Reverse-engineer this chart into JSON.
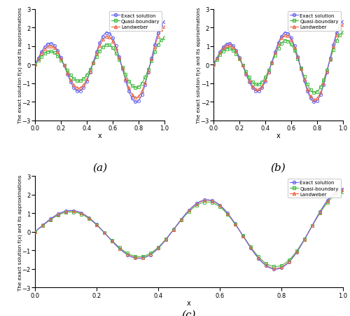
{
  "title_a": "(a)",
  "title_b": "(b)",
  "title_c": "(c)",
  "xlabel": "x",
  "ylabel": "The exact solution f(x) and its approximations",
  "xlim": [
    0,
    1
  ],
  "ylim": [
    -3,
    3
  ],
  "yticks": [
    -3,
    -2,
    -1,
    0,
    1,
    2,
    3
  ],
  "xticks": [
    0,
    0.2,
    0.4,
    0.6,
    0.8,
    1
  ],
  "legend_labels": [
    "Exact solution",
    "Quasi-boundary",
    "Landweber"
  ],
  "exact_color": "#6666ee",
  "quasi_color": "#44bb44",
  "landweber_color": "#ee6644",
  "exact_marker": "o",
  "quasi_marker": "s",
  "landweber_marker": "^",
  "n_fine": 500,
  "n_markers": 41,
  "alpha_val": 0.2,
  "eps_a": 0.001,
  "eps_b": 0.0005,
  "eps_c": 0.0001,
  "quasi_atten_a": 0.62,
  "quasi_atten_b": 0.75,
  "quasi_atten_c": 0.93,
  "land_atten_a": 0.88,
  "land_atten_b": 0.93,
  "land_atten_c": 0.98,
  "freq": 4.5,
  "amp_base": 1.0,
  "amp_slope": 1.3
}
